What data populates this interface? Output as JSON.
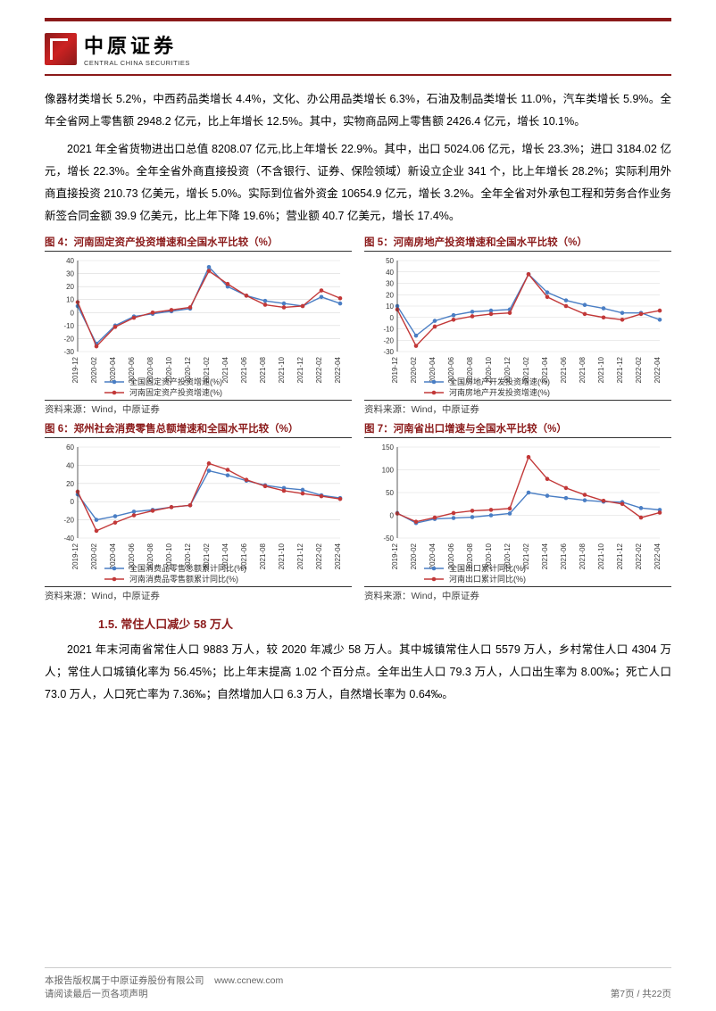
{
  "logo": {
    "cn": "中原证券",
    "en": "CENTRAL CHINA SECURITIES"
  },
  "para1": "像器材类增长 5.2%，中西药品类增长 4.4%，文化、办公用品类增长 6.3%，石油及制品类增长 11.0%，汽车类增长 5.9%。全年全省网上零售额 2948.2 亿元，比上年增长 12.5%。其中，实物商品网上零售额 2426.4 亿元，增长 10.1%。",
  "para2": "2021 年全省货物进出口总值 8208.07 亿元,比上年增长 22.9%。其中，出口 5024.06 亿元，增长 23.3%；进口 3184.02 亿元，增长 22.3%。全年全省外商直接投资（不含银行、证券、保险领域）新设立企业 341 个，比上年增长 28.2%；实际利用外商直接投资 210.73 亿美元，增长 5.0%。实际到位省外资金 10654.9 亿元，增长 3.2%。全年全省对外承包工程和劳务合作业务新签合同金额 39.9 亿美元，比上年下降 19.6%；营业额 40.7 亿美元，增长 17.4%。",
  "charts": {
    "common_xlabels": [
      "2019-12",
      "2020-02",
      "2020-04",
      "2020-06",
      "2020-08",
      "2020-10",
      "2020-12",
      "2021-02",
      "2021-04",
      "2021-06",
      "2021-08",
      "2021-10",
      "2021-12",
      "2022-02"
    ],
    "common_xlabels_ext": [
      "2019-12",
      "2020-02",
      "2020-04",
      "2020-06",
      "2020-08",
      "2020-10",
      "2020-12",
      "2021-02",
      "2021-04",
      "2021-06",
      "2021-08",
      "2021-10",
      "2021-12",
      "2022-02",
      "2022-04"
    ],
    "src": "资料来源：Wind，中原证券",
    "colors": {
      "blue": "#4a7ec4",
      "red": "#c23838",
      "grid": "#d9d9d9",
      "axis": "#333333",
      "bg": "#ffffff",
      "title": "#8b1a1a"
    },
    "line_width": 1.4,
    "marker_radius": 2.3,
    "axis_fontsize": 8,
    "legend_fontsize": 9,
    "c4": {
      "title": "图 4：河南固定资产投资增速和全国水平比较（%）",
      "ylim": [
        -30,
        40
      ],
      "ytick_step": 10,
      "s1_name": "全国固定资产投资增速(%)",
      "s2_name": "河南固定资产投资增速(%)",
      "s1": [
        5,
        -24,
        -10,
        -3,
        -1,
        1,
        3,
        35,
        20,
        13,
        9,
        7,
        5,
        12,
        7
      ],
      "s2": [
        8,
        -26,
        -11,
        -4,
        0,
        2,
        4,
        32,
        22,
        13,
        6,
        4,
        5,
        17,
        11
      ]
    },
    "c5": {
      "title": "图 5：河南房地产投资增速和全国水平比较（%）",
      "ylim": [
        -30,
        50
      ],
      "ytick_step": 10,
      "s1_name": "全国房地产开发投资增速(%)",
      "s2_name": "河南房地产开发投资增速(%)",
      "s1": [
        10,
        -16,
        -3,
        2,
        5,
        6,
        7,
        38,
        22,
        15,
        11,
        8,
        4,
        4,
        -2
      ],
      "s2": [
        7,
        -25,
        -8,
        -2,
        1,
        3,
        4,
        38,
        18,
        10,
        3,
        0,
        -2,
        3,
        6
      ]
    },
    "c6": {
      "title": "图 6：郑州社会消费零售总额增速和全国水平比较（%）",
      "ylim": [
        -40,
        60
      ],
      "ytick_step": 20,
      "s1_name": "全国消费品零售总额累计同比(%)",
      "s2_name": "河南消费品零售额累计同比(%)",
      "s1": [
        8,
        -20,
        -16,
        -11,
        -9,
        -6,
        -4,
        34,
        29,
        23,
        18,
        15,
        13,
        7,
        4
      ],
      "s2": [
        11,
        -32,
        -23,
        -15,
        -10,
        -6,
        -4,
        42,
        35,
        24,
        17,
        12,
        9,
        6,
        3
      ]
    },
    "c7": {
      "title": "图 7：河南省出口增速与全国水平比较（%）",
      "ylim": [
        -50,
        150
      ],
      "ytick_step": 50,
      "s1_name": "全国出口累计同比(%)",
      "s2_name": "河南出口累计同比(%)",
      "s1": [
        5,
        -17,
        -8,
        -6,
        -4,
        0,
        4,
        50,
        43,
        38,
        33,
        30,
        29,
        16,
        12
      ],
      "s2": [
        4,
        -14,
        -5,
        5,
        10,
        12,
        15,
        128,
        80,
        60,
        45,
        32,
        25,
        -5,
        6
      ]
    }
  },
  "h2": "1.5. 常住人口减少 58 万人",
  "para3": "2021 年末河南省常住人口 9883 万人，较 2020 年减少 58 万人。其中城镇常住人口 5579 万人，乡村常住人口 4304 万人；常住人口城镇化率为 56.45%；比上年末提高 1.02 个百分点。全年出生人口 79.3 万人，人口出生率为 8.00‰；死亡人口 73.0 万人，人口死亡率为 7.36‰；自然增加人口 6.3 万人，自然增长率为 0.64‰。",
  "footer": {
    "left1": "本报告版权属于中原证券股份有限公司",
    "url": "www.ccnew.com",
    "left2": "请阅读最后一页各项声明",
    "page": "第7页  /  共22页"
  }
}
